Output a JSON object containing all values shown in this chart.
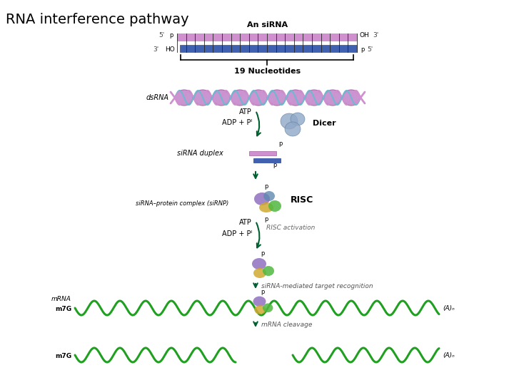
{
  "title": "RNA interference pathway",
  "title_fontsize": 14,
  "background_color": "#ffffff",
  "fig_width": 7.2,
  "fig_height": 5.4,
  "labels": {
    "an_sirna": "An siRNA",
    "nucleotides": "19 Nucleotides",
    "five_prime_top": "5'",
    "three_prime_top": "3'",
    "three_prime_bot": "3'",
    "five_prime_bot": "5'",
    "p_top_left": "p",
    "oh_top": "OH",
    "ho_bot": "HO",
    "p_bot_right": "p",
    "dsrna": "dsRNA",
    "atp1": "ATP",
    "adp1": "ADP + Pᴵ",
    "dicer": "Dicer",
    "sirna_duplex": "siRNA duplex",
    "p_sirna_top": "p",
    "p_sirna_bot": "p",
    "sirna_protein": "siRNA–protein complex (siRNP)",
    "risc": "RISC",
    "p_risc_top": "p",
    "p_risc_bot": "p",
    "atp2": "ATP",
    "adp2": "ADP + Pᴵ",
    "risc_activation": "RISC activation",
    "p_active": "p",
    "sirna_target": "siRNA-mediated target recognition",
    "mrna_label": "mRNA",
    "m7g_top": "m7G",
    "an_top": "(A)ₙ",
    "p_mrna": "p",
    "mrna_cleavage": "mRNA cleavage",
    "m7g_bot": "m7G",
    "an_bot": "(A)ₙ"
  },
  "colors": {
    "sirna_top_strand": "#d090d0",
    "sirna_bot_strand": "#4060b0",
    "dsrna_helix_pink": "#d090d0",
    "dsrna_helix_blue": "#70b8d0",
    "arrow_color": "#006030",
    "mrna_color": "#20a020",
    "dicer_color": "#90a8c8",
    "risc_purple": "#9070c0",
    "risc_yellow": "#d0a830",
    "risc_green": "#50b840",
    "risc_blue": "#6088b0",
    "text_color": "#000000",
    "tick_color": "#333333"
  }
}
